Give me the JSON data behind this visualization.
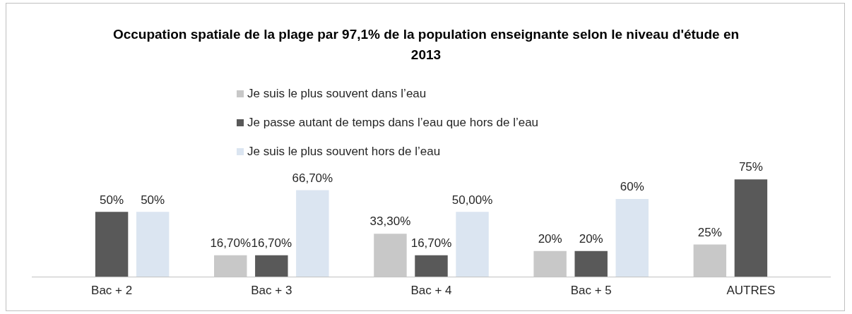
{
  "chart_data": {
    "type": "bar",
    "title": "Occupation spatiale de la plage par 97,1% de  la population enseignante selon le niveau d'étude en 2013",
    "categories": [
      "Bac + 2",
      "Bac + 3",
      "Bac + 4",
      "Bac + 5",
      "AUTRES"
    ],
    "series": [
      {
        "name": "Je suis le plus souvent dans l’eau",
        "color": "#c8c8c8",
        "values": [
          null,
          16.7,
          33.3,
          20,
          25
        ],
        "value_labels": [
          null,
          "16,70%",
          "33,30%",
          "20%",
          "25%"
        ]
      },
      {
        "name": "Je passe autant de temps dans l’eau que hors de l’eau",
        "color": "#595959",
        "values": [
          50,
          16.7,
          16.7,
          20,
          75
        ],
        "value_labels": [
          "50%",
          "16,70%",
          "16,70%",
          "20%",
          "75%"
        ]
      },
      {
        "name": "Je suis le plus souvent hors de l’eau",
        "color": "#dbe5f1",
        "values": [
          50,
          66.7,
          50,
          60,
          null
        ],
        "value_labels": [
          "50%",
          "66,70%",
          "50,00%",
          "60%",
          null
        ]
      }
    ],
    "legend": "top",
    "grid": false
  }
}
